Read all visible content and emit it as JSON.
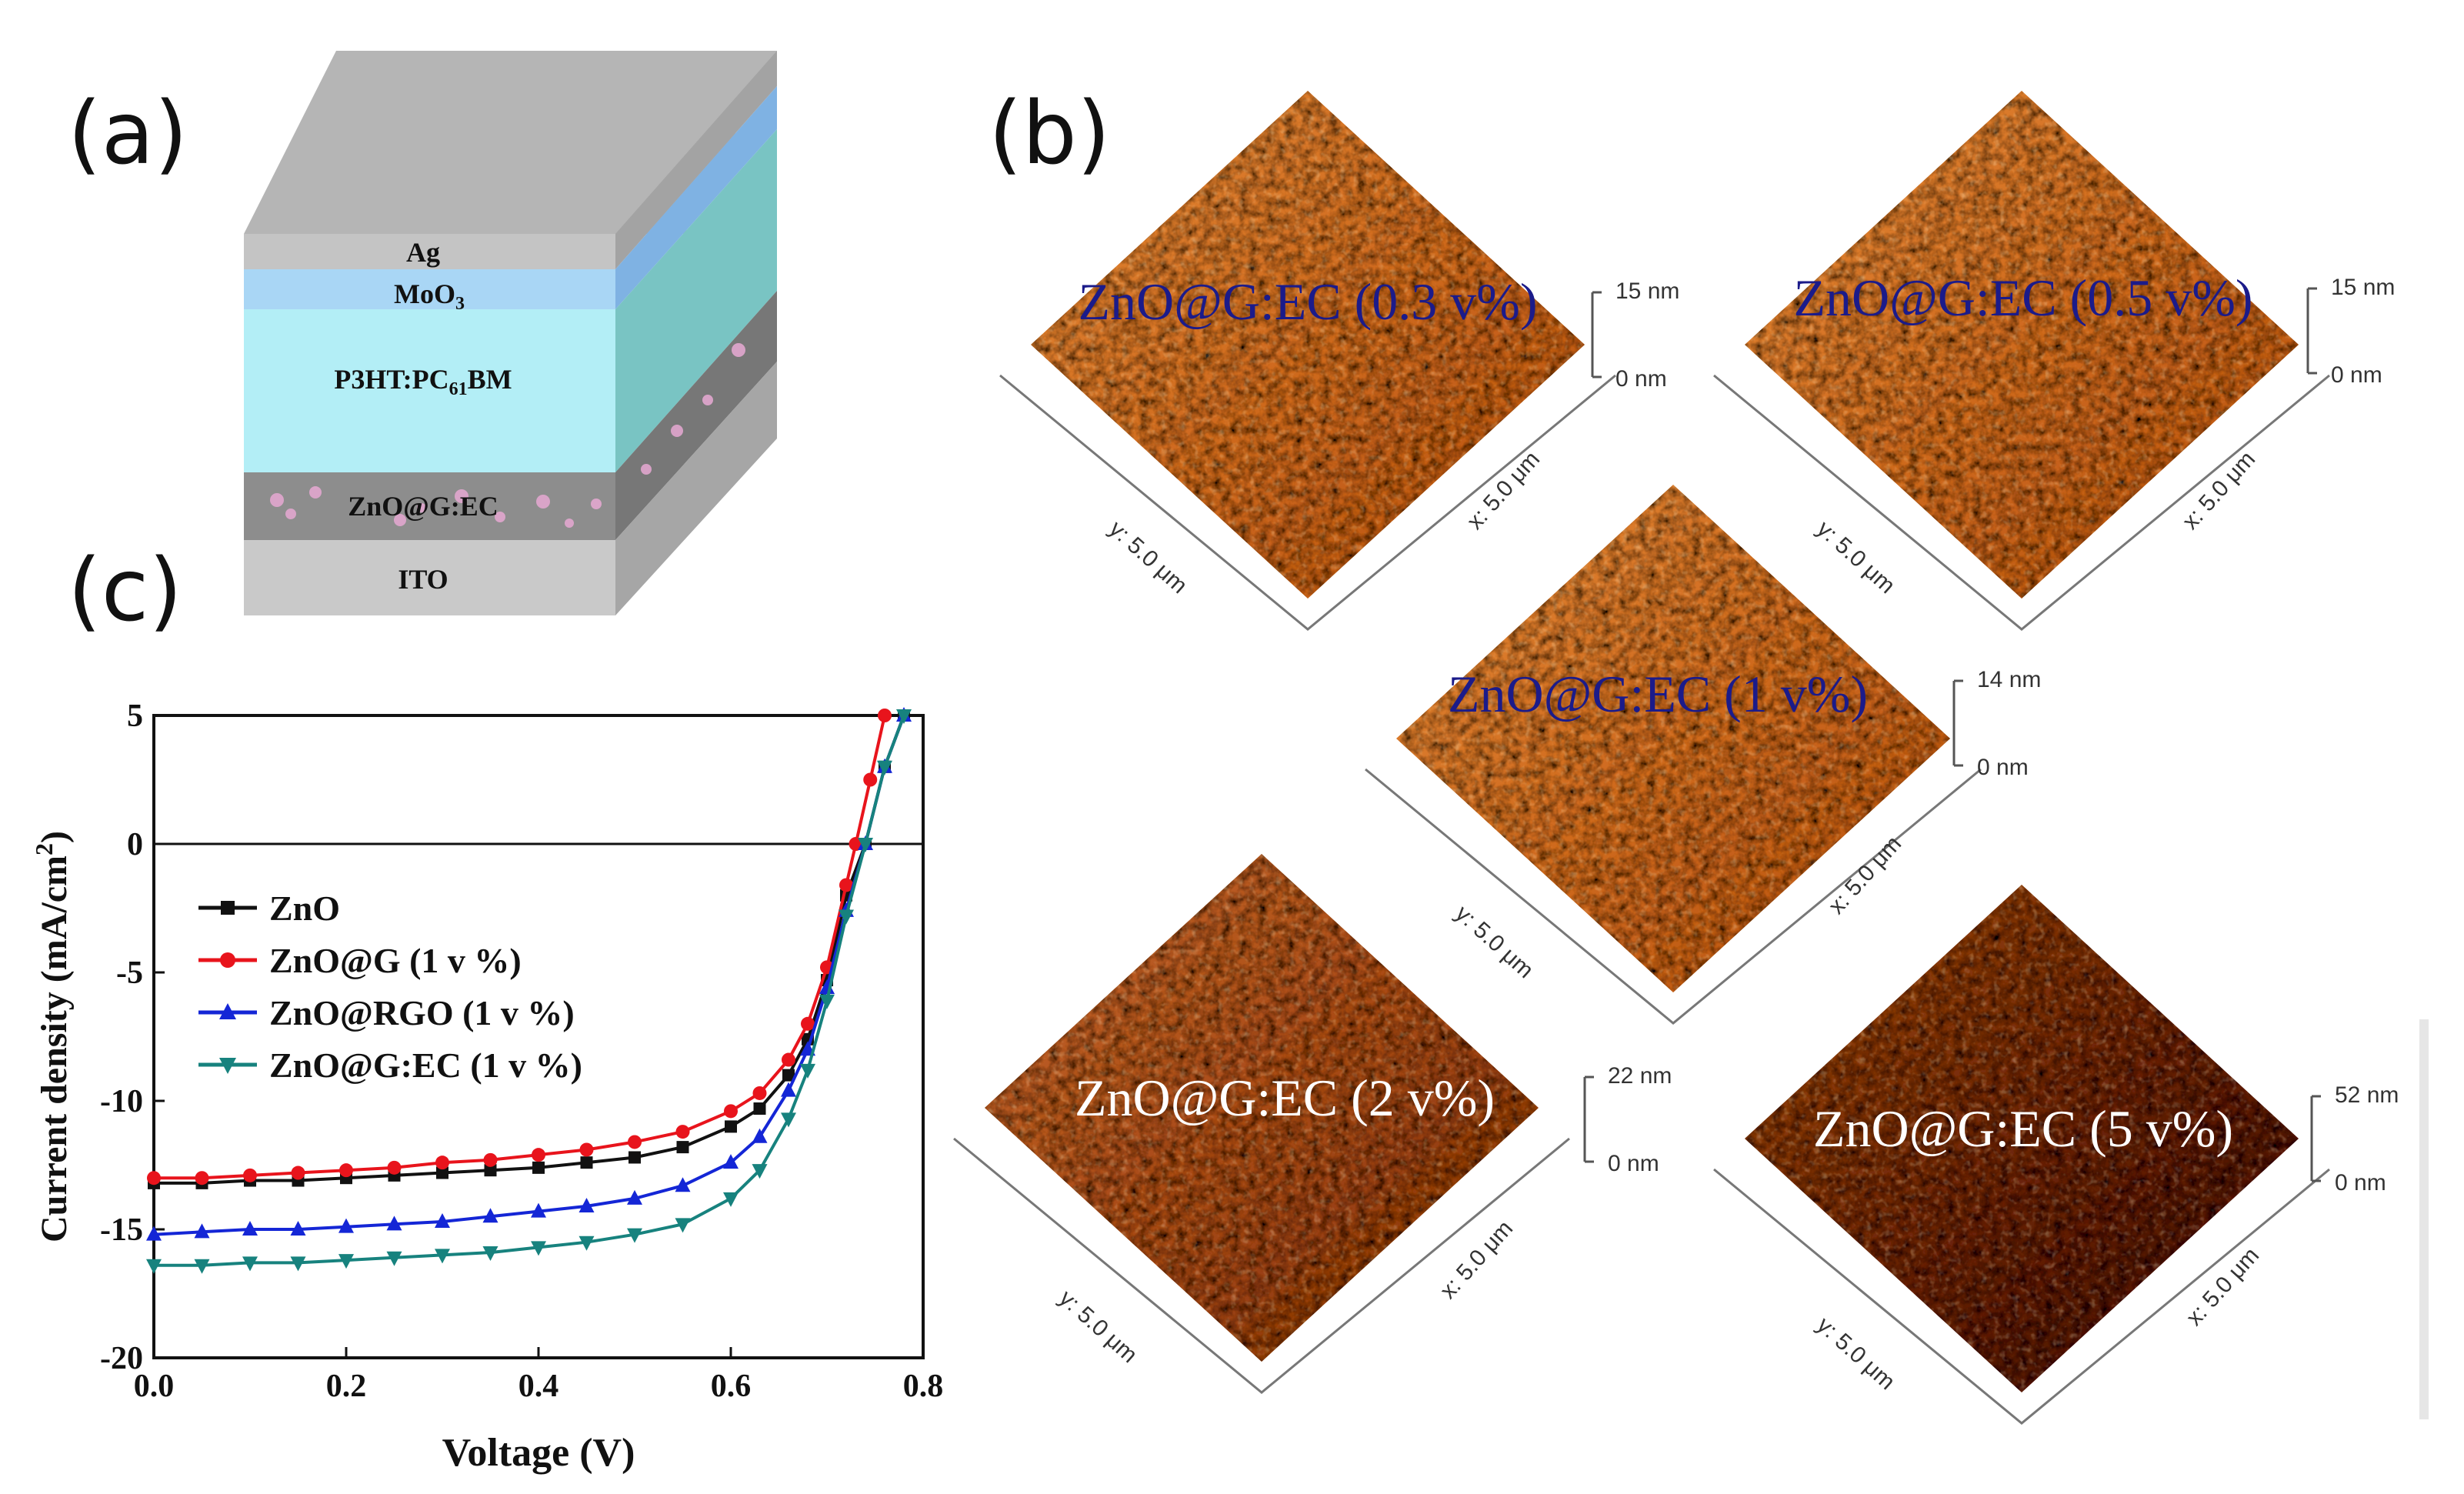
{
  "panels": {
    "a": "(a)",
    "b": "(b)",
    "c": "(c)"
  },
  "stack": {
    "layers": [
      "Ag",
      "MoO",
      "P3HT:PC",
      "ZnO@G:EC",
      "ITO"
    ],
    "moo_sub": "3",
    "pcbm_sub": "61",
    "pcbm_tail": "BM"
  },
  "afm": [
    {
      "label": "ZnO@G:EC (0.3 v%)",
      "zmax": "15 nm",
      "zmin": "0 nm",
      "ylab": "y: 5.0 μm",
      "xlab": "x: 5.0 μm"
    },
    {
      "label": "ZnO@G:EC (0.5 v%)",
      "zmax": "15 nm",
      "zmin": "0 nm",
      "ylab": "y: 5.0 μm",
      "xlab": "x: 5.0 μm"
    },
    {
      "label": "ZnO@G:EC (1 v%)",
      "zmax": "14 nm",
      "zmin": "0 nm",
      "ylab": "y: 5.0 μm",
      "xlab": "x: 5.0 μm"
    },
    {
      "label": "ZnO@G:EC (2 v%)",
      "zmax": "22 nm",
      "zmin": "0 nm",
      "ylab": "y: 5.0 μm",
      "xlab": "x: 5.0 μm"
    },
    {
      "label": "ZnO@G:EC (5 v%)",
      "zmax": "52 nm",
      "zmin": "0 nm",
      "ylab": "y: 5.0 μm",
      "xlab": "x: 5.0 μm"
    }
  ],
  "chart_data": {
    "type": "line",
    "xlabel": "Voltage (V)",
    "ylabel": "Current density (mA/cm",
    "ylabel_sup": "2",
    "ylabel_tail": ")",
    "xlim": [
      0.0,
      0.8
    ],
    "ylim": [
      -20,
      5
    ],
    "xticks": [
      "0.0",
      "0.2",
      "0.4",
      "0.6",
      "0.8"
    ],
    "yticks": [
      "5",
      "0",
      "-5",
      "-10",
      "-15",
      "-20"
    ],
    "legend_position": "center-left",
    "series": [
      {
        "name": "ZnO",
        "color": "#111111",
        "marker": "square",
        "x": [
          0.0,
          0.05,
          0.1,
          0.15,
          0.2,
          0.25,
          0.3,
          0.35,
          0.4,
          0.45,
          0.5,
          0.55,
          0.6,
          0.63,
          0.66,
          0.68,
          0.7,
          0.72,
          0.74,
          0.76,
          0.78
        ],
        "y": [
          -13.2,
          -13.2,
          -13.1,
          -13.1,
          -13.0,
          -12.9,
          -12.8,
          -12.7,
          -12.6,
          -12.4,
          -12.2,
          -11.8,
          -11.0,
          -10.3,
          -9.0,
          -7.6,
          -5.3,
          -2.0,
          0.0,
          3.0,
          5.0
        ]
      },
      {
        "name": "ZnO@G (1 v %)",
        "color": "#e8141c",
        "marker": "circle",
        "x": [
          0.0,
          0.05,
          0.1,
          0.15,
          0.2,
          0.25,
          0.3,
          0.35,
          0.4,
          0.45,
          0.5,
          0.55,
          0.6,
          0.63,
          0.66,
          0.68,
          0.7,
          0.72,
          0.73,
          0.745,
          0.76
        ],
        "y": [
          -13.0,
          -13.0,
          -12.9,
          -12.8,
          -12.7,
          -12.6,
          -12.4,
          -12.3,
          -12.1,
          -11.9,
          -11.6,
          -11.2,
          -10.4,
          -9.7,
          -8.4,
          -7.0,
          -4.8,
          -1.6,
          0.0,
          2.5,
          5.0
        ]
      },
      {
        "name": "ZnO@RGO (1 v %)",
        "color": "#1426d6",
        "marker": "triangle-up",
        "x": [
          0.0,
          0.05,
          0.1,
          0.15,
          0.2,
          0.25,
          0.3,
          0.35,
          0.4,
          0.45,
          0.5,
          0.55,
          0.6,
          0.63,
          0.66,
          0.68,
          0.7,
          0.72,
          0.74,
          0.76,
          0.78
        ],
        "y": [
          -15.2,
          -15.1,
          -15.0,
          -15.0,
          -14.9,
          -14.8,
          -14.7,
          -14.5,
          -14.3,
          -14.1,
          -13.8,
          -13.3,
          -12.4,
          -11.4,
          -9.6,
          -8.0,
          -5.6,
          -2.6,
          0.0,
          3.0,
          5.0
        ]
      },
      {
        "name": "ZnO@G:EC (1 v %)",
        "color": "#17827e",
        "marker": "triangle-down",
        "x": [
          0.0,
          0.05,
          0.1,
          0.15,
          0.2,
          0.25,
          0.3,
          0.35,
          0.4,
          0.45,
          0.5,
          0.55,
          0.6,
          0.63,
          0.66,
          0.68,
          0.7,
          0.72,
          0.74,
          0.76,
          0.78
        ],
        "y": [
          -16.4,
          -16.4,
          -16.3,
          -16.3,
          -16.2,
          -16.1,
          -16.0,
          -15.9,
          -15.7,
          -15.5,
          -15.2,
          -14.8,
          -13.8,
          -12.7,
          -10.7,
          -8.8,
          -6.1,
          -2.8,
          0.0,
          3.0,
          5.0
        ]
      }
    ]
  }
}
